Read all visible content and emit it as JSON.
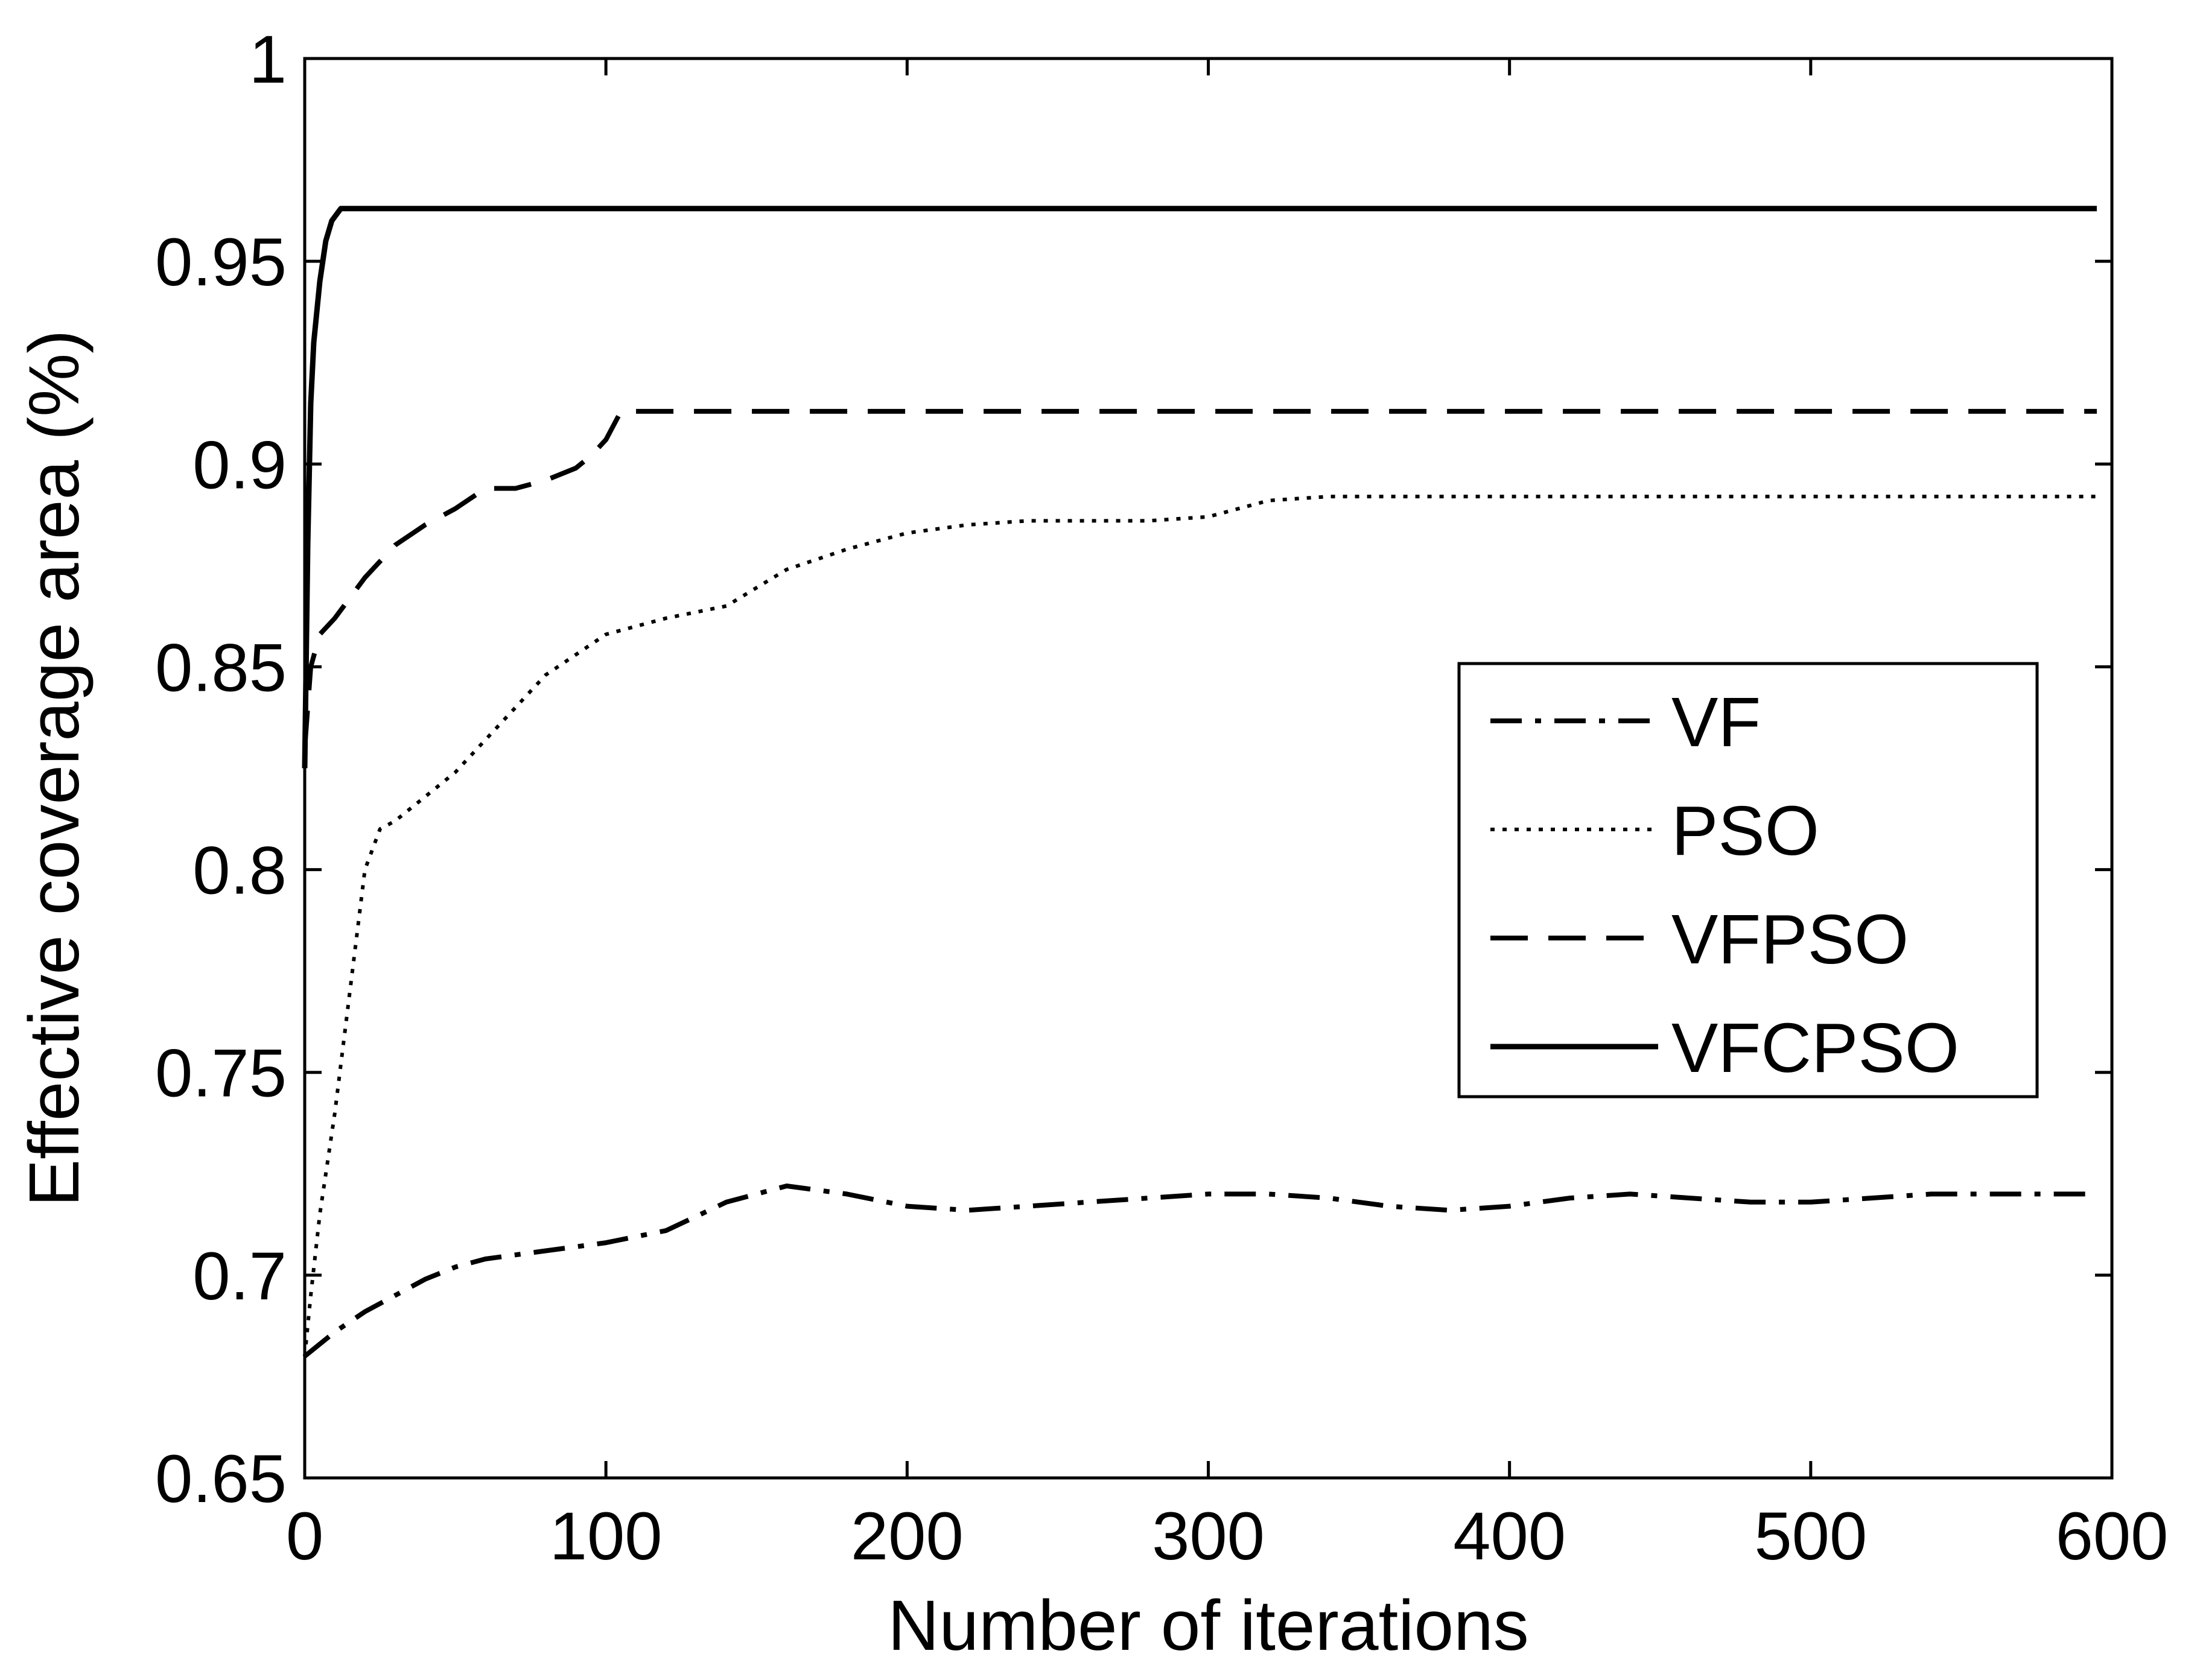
{
  "chart_data": {
    "type": "line",
    "title": "",
    "xlabel": "Number of iterations",
    "ylabel": "Effective coverage area (%)",
    "xlim": [
      0,
      600
    ],
    "ylim": [
      0.65,
      1.0
    ],
    "grid": false,
    "x_ticks": [
      0,
      100,
      200,
      300,
      400,
      500,
      600
    ],
    "x_tick_labels": [
      "0",
      "100",
      "200",
      "300",
      "400",
      "500",
      "600"
    ],
    "y_ticks": [
      0.65,
      0.7,
      0.75,
      0.8,
      0.85,
      0.9,
      0.95,
      1.0
    ],
    "y_tick_labels": [
      "0.65",
      "0.7",
      "0.75",
      "0.8",
      "0.85",
      "0.9",
      "0.95",
      "1"
    ],
    "legend_position": "center-right",
    "series": [
      {
        "name": "VF",
        "style": "dash-dot",
        "x": [
          0,
          10,
          20,
          30,
          40,
          50,
          60,
          80,
          100,
          120,
          140,
          160,
          180,
          200,
          220,
          240,
          260,
          280,
          300,
          320,
          340,
          360,
          380,
          400,
          420,
          440,
          460,
          480,
          500,
          520,
          540,
          560,
          580,
          595
        ],
        "y": [
          0.68,
          0.686,
          0.691,
          0.695,
          0.699,
          0.702,
          0.704,
          0.706,
          0.708,
          0.711,
          0.718,
          0.722,
          0.72,
          0.717,
          0.716,
          0.717,
          0.718,
          0.719,
          0.72,
          0.72,
          0.719,
          0.717,
          0.716,
          0.717,
          0.719,
          0.72,
          0.719,
          0.718,
          0.718,
          0.719,
          0.72,
          0.72,
          0.72,
          0.72
        ]
      },
      {
        "name": "PSO",
        "style": "dotted",
        "x": [
          0,
          2,
          5,
          10,
          15,
          20,
          25,
          30,
          40,
          50,
          60,
          70,
          80,
          90,
          100,
          120,
          140,
          160,
          180,
          200,
          220,
          240,
          260,
          280,
          300,
          320,
          340,
          360,
          400,
          450,
          500,
          550,
          595
        ],
        "y": [
          0.68,
          0.695,
          0.715,
          0.74,
          0.77,
          0.8,
          0.81,
          0.812,
          0.818,
          0.824,
          0.832,
          0.84,
          0.848,
          0.853,
          0.858,
          0.862,
          0.865,
          0.874,
          0.879,
          0.883,
          0.885,
          0.886,
          0.886,
          0.886,
          0.887,
          0.891,
          0.892,
          0.892,
          0.892,
          0.892,
          0.892,
          0.892,
          0.892
        ]
      },
      {
        "name": "VFPSO",
        "style": "dashed",
        "x": [
          0,
          2,
          5,
          10,
          20,
          30,
          40,
          50,
          60,
          70,
          80,
          90,
          95,
          100,
          105,
          120,
          200,
          300,
          400,
          500,
          595
        ],
        "y": [
          0.83,
          0.85,
          0.858,
          0.862,
          0.872,
          0.88,
          0.885,
          0.889,
          0.894,
          0.894,
          0.896,
          0.899,
          0.902,
          0.906,
          0.913,
          0.913,
          0.913,
          0.913,
          0.913,
          0.913,
          0.913
        ]
      },
      {
        "name": "VFCPSO",
        "style": "solid",
        "x": [
          0,
          1,
          2,
          3,
          5,
          7,
          9,
          12,
          20,
          100,
          200,
          300,
          400,
          500,
          595
        ],
        "y": [
          0.825,
          0.88,
          0.915,
          0.93,
          0.945,
          0.955,
          0.96,
          0.963,
          0.963,
          0.963,
          0.963,
          0.963,
          0.963,
          0.963,
          0.963
        ]
      }
    ]
  }
}
